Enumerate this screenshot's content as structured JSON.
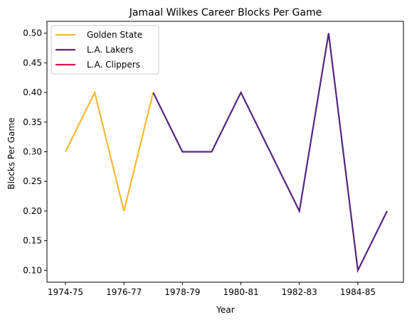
{
  "chart_data": {
    "type": "line",
    "title": "Jamaal Wilkes Career Blocks Per Game",
    "xlabel": "Year",
    "ylabel": "Blocks Per Game",
    "x": [
      "1974-75",
      "1975-76",
      "1976-77",
      "1977-78",
      "1978-79",
      "1979-80",
      "1980-81",
      "1981-82",
      "1982-83",
      "1983-84",
      "1984-85",
      "1985-86"
    ],
    "x_tick_labels": [
      "1974-75",
      "1976-77",
      "1978-79",
      "1980-81",
      "1982-83",
      "1984-85"
    ],
    "ylim": [
      0.08,
      0.52
    ],
    "y_ticks": [
      "0.10",
      "0.15",
      "0.20",
      "0.25",
      "0.30",
      "0.35",
      "0.40",
      "0.45",
      "0.50"
    ],
    "grid": false,
    "legend_placement": "top-left",
    "series": [
      {
        "name": "Golden State",
        "color": "#f7b92f",
        "values": [
          0.3,
          0.4,
          0.2,
          0.4,
          null,
          null,
          null,
          null,
          null,
          null,
          null,
          null
        ]
      },
      {
        "name": "L.A. Lakers",
        "color": "#552583",
        "values": [
          null,
          null,
          null,
          0.4,
          0.3,
          0.3,
          0.4,
          0.3,
          0.2,
          0.5,
          0.1,
          0.2
        ]
      },
      {
        "name": "L.A. Clippers",
        "color": "#d9174f",
        "values": [
          null,
          null,
          null,
          null,
          null,
          null,
          null,
          null,
          null,
          null,
          null,
          null
        ]
      }
    ]
  }
}
